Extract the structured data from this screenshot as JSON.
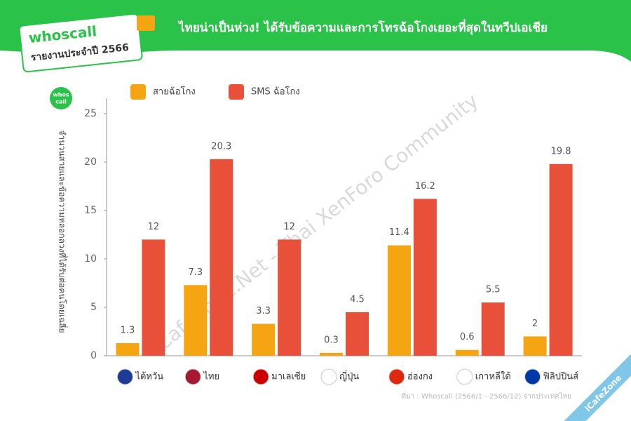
{
  "header": {
    "logo": "whoscall",
    "report": "รายงานประจำปี 2566",
    "title": "ไทยน่าเป็นห่วง! ได้รับข้อความและการโทรฉ้อโกงเยอะที่สุดในทวีปเอเชีย"
  },
  "side_logo": [
    "whos",
    "call"
  ],
  "source": "ที่มา : Whoscall (2566/1 - 2566/12) จากประเทศไทย",
  "watermark": "iCafeZone.Net - Thai XenForo Community",
  "corner_badge": "iCafeZone",
  "chart_data": {
    "type": "bar",
    "y_label": "จำนวนสายและข้อความหลอกลวงที่ได้รับต่อคนโดยเฉลี่ย",
    "categories": [
      "ไต้หวัน",
      "ไทย",
      "มาเลเซีย",
      "ญี่ปุ่น",
      "ฮ่องกง",
      "เกาหลีใต้",
      "ฟิลิปปินส์"
    ],
    "series": [
      {
        "name": "สายฉ้อโกง",
        "color": "#f5a412",
        "values": [
          1.3,
          7.3,
          3.3,
          0.3,
          11.4,
          0.6,
          2
        ]
      },
      {
        "name": "SMS ฉ้อโกง",
        "color": "#e8503a",
        "values": [
          12,
          20.3,
          12,
          4.5,
          16.2,
          5.5,
          19.8
        ]
      }
    ],
    "ylim": [
      0,
      25
    ],
    "yticks": [
      0,
      5,
      10,
      15,
      20,
      25
    ],
    "grid": false,
    "legend": "top-left"
  }
}
